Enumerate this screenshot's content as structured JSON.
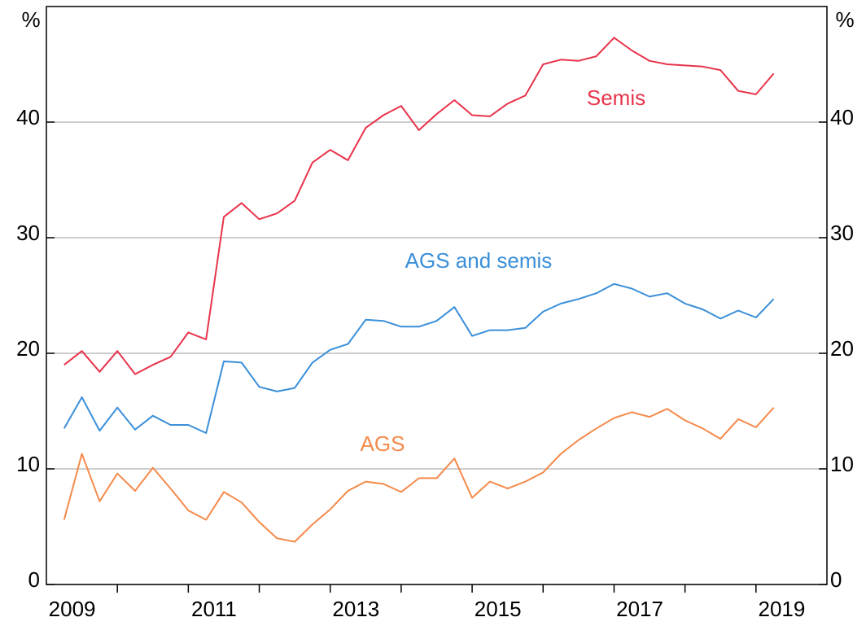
{
  "chart_data": {
    "type": "line",
    "y_unit": "%",
    "x": [
      2009.25,
      2009.5,
      2009.75,
      2010,
      2010.25,
      2010.5,
      2010.75,
      2011,
      2011.25,
      2011.5,
      2011.75,
      2012,
      2012.25,
      2012.5,
      2012.75,
      2013,
      2013.25,
      2013.5,
      2013.75,
      2014,
      2014.25,
      2014.5,
      2014.75,
      2015,
      2015.25,
      2015.5,
      2015.75,
      2016,
      2016.25,
      2016.5,
      2016.75,
      2017,
      2017.25,
      2017.5,
      2017.75,
      2018,
      2018.25,
      2018.5,
      2018.75,
      2019,
      2019.25
    ],
    "series": [
      {
        "name": "Semis",
        "color": "#e8334a",
        "values": [
          19.0,
          20.2,
          18.4,
          20.2,
          18.2,
          19.0,
          19.7,
          21.8,
          21.2,
          31.8,
          33.0,
          31.6,
          32.1,
          33.2,
          36.5,
          37.6,
          36.7,
          39.5,
          40.6,
          41.4,
          39.3,
          40.7,
          41.9,
          40.6,
          40.5,
          41.6,
          42.3,
          45.0,
          45.4,
          45.3,
          45.7,
          47.3,
          46.2,
          45.3,
          45.0,
          44.9,
          44.8,
          44.5,
          42.7,
          42.4,
          44.2
        ]
      },
      {
        "name": "AGS and semis",
        "color": "#3a8fd9",
        "values": [
          13.5,
          16.2,
          13.3,
          15.3,
          13.4,
          14.6,
          13.8,
          13.8,
          13.1,
          19.3,
          19.2,
          17.1,
          16.7,
          17.0,
          19.2,
          20.3,
          20.8,
          22.9,
          22.8,
          22.3,
          22.3,
          22.8,
          24.0,
          21.5,
          22.0,
          22.0,
          22.2,
          23.6,
          24.3,
          24.7,
          25.2,
          26.0,
          25.6,
          24.9,
          25.2,
          24.3,
          23.8,
          23.0,
          23.7,
          23.1,
          24.7
        ]
      },
      {
        "name": "AGS",
        "color": "#f58a4b",
        "values": [
          5.6,
          11.3,
          7.2,
          9.6,
          8.1,
          10.1,
          8.3,
          6.4,
          5.6,
          8.0,
          7.1,
          5.4,
          4.0,
          3.7,
          5.2,
          6.5,
          8.1,
          8.9,
          8.7,
          8.0,
          9.2,
          9.2,
          10.9,
          7.5,
          8.9,
          8.3,
          8.9,
          9.7,
          11.3,
          12.5,
          13.5,
          14.4,
          14.9,
          14.5,
          15.2,
          14.2,
          13.5,
          12.6,
          14.3,
          13.6,
          15.3
        ]
      }
    ],
    "xlim": [
      2009,
      2020
    ],
    "xticks": [
      {
        "value": 2009.5,
        "label": "2009"
      },
      {
        "value": 2011.5,
        "label": "2011"
      },
      {
        "value": 2013.5,
        "label": "2013"
      },
      {
        "value": 2015.5,
        "label": "2015"
      },
      {
        "value": 2017.5,
        "label": "2017"
      },
      {
        "value": 2019.5,
        "label": "2019"
      }
    ],
    "xticks_minor": [
      2010,
      2011,
      2012,
      2013,
      2014,
      2015,
      2016,
      2017,
      2018,
      2019
    ],
    "ylim": [
      0,
      50
    ],
    "yticks": [
      0,
      10,
      20,
      30,
      40
    ],
    "grid": true
  }
}
